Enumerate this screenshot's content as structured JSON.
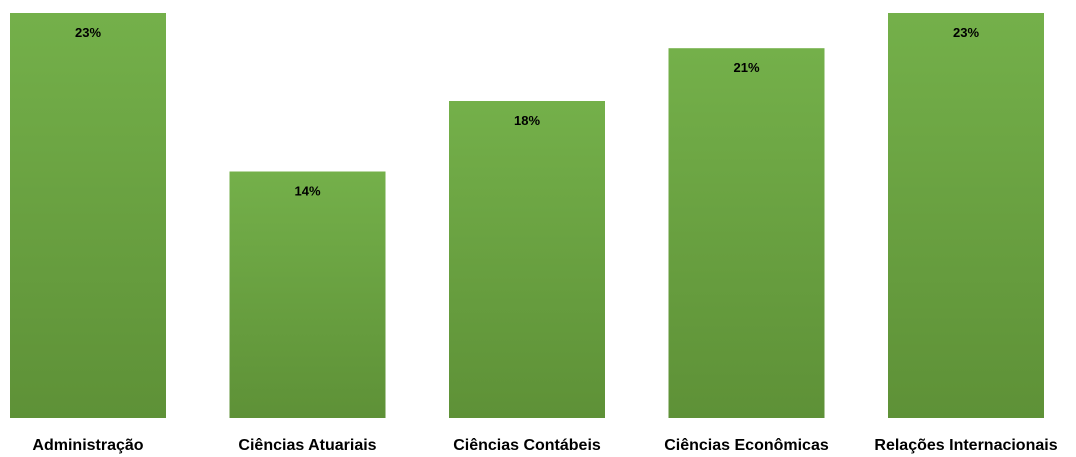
{
  "chart_data": {
    "type": "bar",
    "categories": [
      "Administração",
      "Ciências Atuariais",
      "Ciências Contábeis",
      "Ciências Econômicas",
      "Relações Internacionais"
    ],
    "values": [
      23,
      14,
      18,
      21,
      23
    ],
    "data_labels": [
      "23%",
      "14%",
      "18%",
      "21%",
      "23%"
    ],
    "unit": "%",
    "ylim": [
      0,
      23
    ],
    "grid": false,
    "legend": "none",
    "colors": {
      "bar_top": "#74b04a",
      "bar_bottom": "#5e9137"
    }
  }
}
